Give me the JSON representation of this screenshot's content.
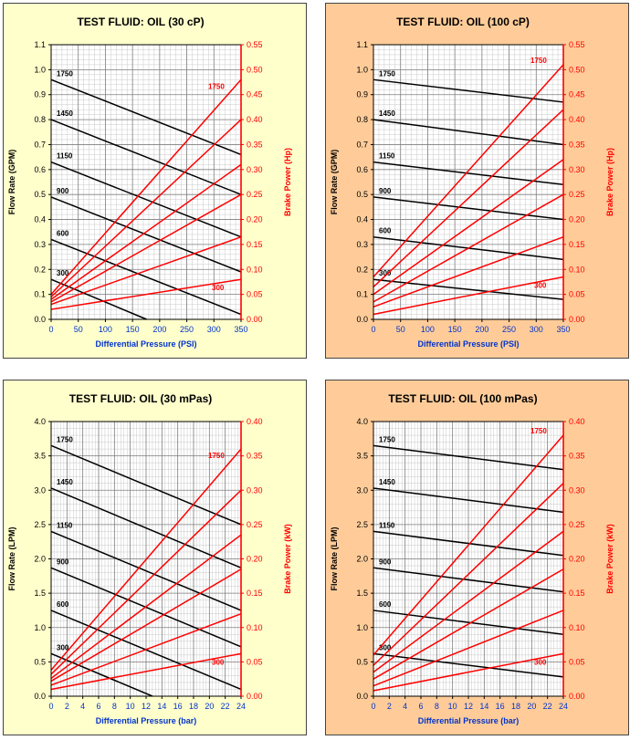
{
  "colors": {
    "panel_yellow": "#FFFFCC",
    "panel_peach": "#FFCC99",
    "flow_line": "#000000",
    "power_line": "#FF0000",
    "x_axis_label": "#0033CC",
    "power_axis": "#FF0000"
  },
  "chart_data": [
    {
      "type": "line",
      "title": "TEST FLUID:  OIL (30 cP)",
      "background": "panel_yellow",
      "xlabel": "Differential Pressure (PSI)",
      "ylabel": "Flow Rate (GPM)",
      "y2label": "Brake Power (Hp)",
      "xlim": [
        0,
        350
      ],
      "x_ticks": [
        "0",
        "50",
        "100",
        "150",
        "200",
        "250",
        "300",
        "350"
      ],
      "ylim": [
        0,
        1.1
      ],
      "y_ticks": [
        "0.0",
        "0.1",
        "0.2",
        "0.3",
        "0.4",
        "0.5",
        "0.6",
        "0.7",
        "0.8",
        "0.9",
        "1.0",
        "1.1"
      ],
      "y2lim": [
        0,
        0.55
      ],
      "y2_ticks": [
        "0.00",
        "0.05",
        "0.10",
        "0.15",
        "0.20",
        "0.25",
        "0.30",
        "0.35",
        "0.40",
        "0.45",
        "0.50",
        "0.55"
      ],
      "grid": true,
      "flow_series": [
        {
          "name": "1750",
          "x": [
            0,
            350
          ],
          "y": [
            0.96,
            0.66
          ]
        },
        {
          "name": "1450",
          "x": [
            0,
            350
          ],
          "y": [
            0.8,
            0.5
          ]
        },
        {
          "name": "1150",
          "x": [
            0,
            350
          ],
          "y": [
            0.63,
            0.33
          ]
        },
        {
          "name": "900",
          "x": [
            0,
            350
          ],
          "y": [
            0.49,
            0.19
          ]
        },
        {
          "name": "600",
          "x": [
            0,
            350
          ],
          "y": [
            0.32,
            0.02
          ]
        },
        {
          "name": "300",
          "x": [
            0,
            176
          ],
          "y": [
            0.16,
            0.0
          ]
        }
      ],
      "power_series": [
        {
          "name": "1750",
          "x": [
            0,
            350
          ],
          "y": [
            0.05,
            0.48
          ]
        },
        {
          "name": "1450",
          "x": [
            0,
            350
          ],
          "y": [
            0.045,
            0.4
          ]
        },
        {
          "name": "1150",
          "x": [
            0,
            350
          ],
          "y": [
            0.04,
            0.31
          ]
        },
        {
          "name": "900",
          "x": [
            0,
            350
          ],
          "y": [
            0.035,
            0.25
          ]
        },
        {
          "name": "600",
          "x": [
            0,
            350
          ],
          "y": [
            0.03,
            0.165
          ]
        },
        {
          "name": "300",
          "x": [
            0,
            350
          ],
          "y": [
            0.02,
            0.08
          ]
        }
      ],
      "labels": {
        "1750_power": "1750",
        "300_power": "300"
      }
    },
    {
      "type": "line",
      "title": "TEST FLUID:  OIL (100 cP)",
      "background": "panel_peach",
      "xlabel": "Differential Pressure (PSI)",
      "ylabel": "Flow Rate (GPM)",
      "y2label": "Brake Power (Hp)",
      "xlim": [
        0,
        350
      ],
      "x_ticks": [
        "0",
        "50",
        "100",
        "150",
        "200",
        "250",
        "300",
        "350"
      ],
      "ylim": [
        0,
        1.1
      ],
      "y_ticks": [
        "0.0",
        "0.1",
        "0.2",
        "0.3",
        "0.4",
        "0.5",
        "0.6",
        "0.7",
        "0.8",
        "0.9",
        "1.0",
        "1.1"
      ],
      "y2lim": [
        0,
        0.55
      ],
      "y2_ticks": [
        "0.00",
        "0.05",
        "0.10",
        "0.15",
        "0.20",
        "0.25",
        "0.30",
        "0.35",
        "0.40",
        "0.45",
        "0.50",
        "0.55"
      ],
      "grid": true,
      "flow_series": [
        {
          "name": "1750",
          "x": [
            0,
            350
          ],
          "y": [
            0.96,
            0.87
          ]
        },
        {
          "name": "1450",
          "x": [
            0,
            350
          ],
          "y": [
            0.8,
            0.7
          ]
        },
        {
          "name": "1150",
          "x": [
            0,
            350
          ],
          "y": [
            0.63,
            0.54
          ]
        },
        {
          "name": "900",
          "x": [
            0,
            350
          ],
          "y": [
            0.49,
            0.4
          ]
        },
        {
          "name": "600",
          "x": [
            0,
            350
          ],
          "y": [
            0.33,
            0.24
          ]
        },
        {
          "name": "300",
          "x": [
            0,
            350
          ],
          "y": [
            0.16,
            0.08
          ]
        }
      ],
      "power_series": [
        {
          "name": "1750",
          "x": [
            0,
            350
          ],
          "y": [
            0.085,
            0.51
          ]
        },
        {
          "name": "1450",
          "x": [
            0,
            350
          ],
          "y": [
            0.065,
            0.42
          ]
        },
        {
          "name": "1150",
          "x": [
            0,
            350
          ],
          "y": [
            0.05,
            0.32
          ]
        },
        {
          "name": "900",
          "x": [
            0,
            350
          ],
          "y": [
            0.035,
            0.25
          ]
        },
        {
          "name": "600",
          "x": [
            0,
            350
          ],
          "y": [
            0.025,
            0.165
          ]
        },
        {
          "name": "300",
          "x": [
            0,
            350
          ],
          "y": [
            0.01,
            0.085
          ]
        }
      ],
      "labels": {
        "1750_power": "1750",
        "300_power": "300"
      }
    },
    {
      "type": "line",
      "title": "TEST FLUID:  OIL (30 mPas)",
      "background": "panel_yellow",
      "xlabel": "Differential Pressure (bar)",
      "ylabel": "Flow Rate (LPM)",
      "y2label": "Brake Power (kW)",
      "xlim": [
        0,
        24
      ],
      "x_ticks": [
        "0",
        "2",
        "4",
        "6",
        "8",
        "10",
        "12",
        "14",
        "16",
        "18",
        "20",
        "22",
        "24"
      ],
      "ylim": [
        0,
        4.0
      ],
      "y_ticks": [
        "0.0",
        "0.5",
        "1.0",
        "1.5",
        "2.0",
        "2.5",
        "3.0",
        "3.5",
        "4.0"
      ],
      "y2lim": [
        0,
        0.4
      ],
      "y2_ticks": [
        "0.00",
        "0.05",
        "0.10",
        "0.15",
        "0.20",
        "0.25",
        "0.30",
        "0.35",
        "0.40"
      ],
      "grid": true,
      "flow_series": [
        {
          "name": "1750",
          "x": [
            0,
            24
          ],
          "y": [
            3.65,
            2.5
          ]
        },
        {
          "name": "1450",
          "x": [
            0,
            24
          ],
          "y": [
            3.03,
            1.87
          ]
        },
        {
          "name": "1150",
          "x": [
            0,
            24
          ],
          "y": [
            2.4,
            1.25
          ]
        },
        {
          "name": "900",
          "x": [
            0,
            24
          ],
          "y": [
            1.87,
            0.72
          ]
        },
        {
          "name": "600",
          "x": [
            0,
            24
          ],
          "y": [
            1.25,
            0.1
          ]
        },
        {
          "name": "300",
          "x": [
            0,
            12.8
          ],
          "y": [
            0.62,
            0.0
          ]
        }
      ],
      "power_series": [
        {
          "name": "1750",
          "x": [
            0,
            24
          ],
          "y": [
            0.038,
            0.36
          ]
        },
        {
          "name": "1450",
          "x": [
            0,
            24
          ],
          "y": [
            0.032,
            0.3
          ]
        },
        {
          "name": "1150",
          "x": [
            0,
            24
          ],
          "y": [
            0.026,
            0.235
          ]
        },
        {
          "name": "900",
          "x": [
            0,
            24
          ],
          "y": [
            0.022,
            0.185
          ]
        },
        {
          "name": "600",
          "x": [
            0,
            24
          ],
          "y": [
            0.016,
            0.12
          ]
        },
        {
          "name": "300",
          "x": [
            0,
            24
          ],
          "y": [
            0.01,
            0.062
          ]
        }
      ],
      "labels": {
        "1750_power": "1750",
        "300_power": "300"
      }
    },
    {
      "type": "line",
      "title": "TEST FLUID:  OIL (100 mPas)",
      "background": "panel_peach",
      "xlabel": "Differential Pressure (bar)",
      "ylabel": "Flow Rate (LPM)",
      "y2label": "Brake Power (kW)",
      "xlim": [
        0,
        24
      ],
      "x_ticks": [
        "0",
        "2",
        "4",
        "6",
        "8",
        "10",
        "12",
        "14",
        "16",
        "18",
        "20",
        "22",
        "24"
      ],
      "ylim": [
        0,
        4.0
      ],
      "y_ticks": [
        "0.0",
        "0.5",
        "1.0",
        "1.5",
        "2.0",
        "2.5",
        "3.0",
        "3.5",
        "4.0"
      ],
      "y2lim": [
        0,
        0.4
      ],
      "y2_ticks": [
        "0.00",
        "0.05",
        "0.10",
        "0.15",
        "0.20",
        "0.25",
        "0.30",
        "0.35",
        "0.40"
      ],
      "grid": true,
      "flow_series": [
        {
          "name": "1750",
          "x": [
            0,
            24
          ],
          "y": [
            3.65,
            3.3
          ]
        },
        {
          "name": "1450",
          "x": [
            0,
            24
          ],
          "y": [
            3.03,
            2.68
          ]
        },
        {
          "name": "1150",
          "x": [
            0,
            24
          ],
          "y": [
            2.4,
            2.05
          ]
        },
        {
          "name": "900",
          "x": [
            0,
            24
          ],
          "y": [
            1.87,
            1.52
          ]
        },
        {
          "name": "600",
          "x": [
            0,
            24
          ],
          "y": [
            1.25,
            0.9
          ]
        },
        {
          "name": "300",
          "x": [
            0,
            24
          ],
          "y": [
            0.62,
            0.28
          ]
        }
      ],
      "power_series": [
        {
          "name": "1750",
          "x": [
            0,
            24
          ],
          "y": [
            0.06,
            0.38
          ]
        },
        {
          "name": "1450",
          "x": [
            0,
            24
          ],
          "y": [
            0.045,
            0.31
          ]
        },
        {
          "name": "1150",
          "x": [
            0,
            24
          ],
          "y": [
            0.035,
            0.24
          ]
        },
        {
          "name": "900",
          "x": [
            0,
            24
          ],
          "y": [
            0.025,
            0.185
          ]
        },
        {
          "name": "600",
          "x": [
            0,
            24
          ],
          "y": [
            0.015,
            0.125
          ]
        },
        {
          "name": "300",
          "x": [
            0,
            24
          ],
          "y": [
            0.008,
            0.062
          ]
        }
      ],
      "labels": {
        "1750_power": "1750",
        "300_power": "300"
      }
    }
  ]
}
